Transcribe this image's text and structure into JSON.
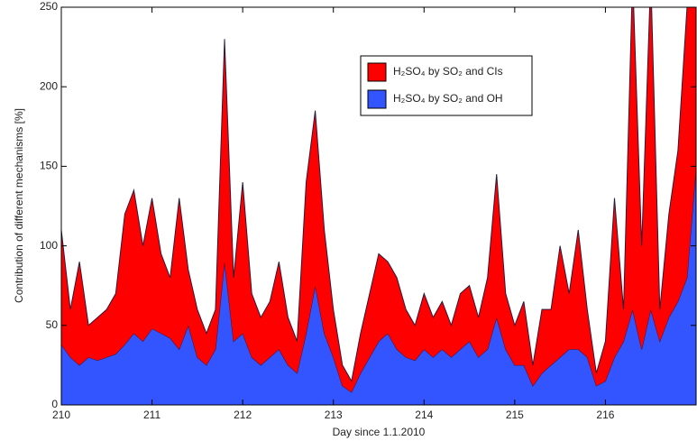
{
  "chart_data": {
    "type": "stacked_area",
    "xlabel": "Day since 1.1.2010",
    "ylabel": "Contribution of different mechanisms [%]",
    "x": [
      210,
      210.1,
      210.2,
      210.3,
      210.4,
      210.5,
      210.6,
      210.7,
      210.8,
      210.9,
      211,
      211.1,
      211.2,
      211.3,
      211.4,
      211.5,
      211.6,
      211.7,
      211.8,
      211.9,
      212,
      212.1,
      212.2,
      212.3,
      212.4,
      212.5,
      212.6,
      212.7,
      212.8,
      212.9,
      213,
      213.1,
      213.2,
      213.3,
      213.4,
      213.5,
      213.6,
      213.7,
      213.8,
      213.9,
      214,
      214.1,
      214.2,
      214.3,
      214.4,
      214.5,
      214.6,
      214.7,
      214.8,
      214.9,
      215,
      215.1,
      215.2,
      215.3,
      215.4,
      215.5,
      215.6,
      215.7,
      215.8,
      215.9,
      216,
      216.1,
      216.2,
      216.3,
      216.4,
      216.5,
      216.6,
      216.7,
      216.8,
      216.9,
      217
    ],
    "series": [
      {
        "name": "H₂SO₄ by SO₂ and CIs",
        "color": "#ff0000",
        "values": [
          72,
          30,
          65,
          20,
          27,
          30,
          38,
          82,
          90,
          60,
          82,
          50,
          38,
          95,
          35,
          30,
          20,
          25,
          140,
          40,
          95,
          40,
          30,
          35,
          55,
          30,
          20,
          95,
          110,
          65,
          30,
          13,
          7,
          25,
          40,
          55,
          45,
          45,
          30,
          22,
          35,
          25,
          30,
          20,
          35,
          35,
          25,
          45,
          90,
          35,
          25,
          40,
          13,
          40,
          35,
          70,
          35,
          75,
          30,
          8,
          25,
          100,
          20,
          210,
          65,
          210,
          20,
          65,
          95,
          170,
          110
        ]
      },
      {
        "name": "H₂SO₄ by SO₂ and OH",
        "color": "#3355ff",
        "values": [
          38,
          30,
          25,
          30,
          28,
          30,
          32,
          38,
          45,
          40,
          48,
          45,
          42,
          35,
          50,
          30,
          25,
          35,
          90,
          40,
          45,
          30,
          25,
          30,
          35,
          25,
          20,
          45,
          75,
          45,
          30,
          12,
          8,
          20,
          30,
          40,
          45,
          35,
          30,
          28,
          35,
          30,
          35,
          30,
          35,
          40,
          30,
          35,
          55,
          35,
          25,
          25,
          12,
          20,
          25,
          30,
          35,
          35,
          30,
          12,
          15,
          30,
          40,
          60,
          35,
          60,
          40,
          55,
          65,
          80,
          150
        ]
      }
    ],
    "xlim": [
      210,
      217
    ],
    "xticks": [
      210,
      211,
      212,
      213,
      214,
      215,
      216
    ],
    "ylim": [
      0,
      250
    ],
    "yticks": [
      0,
      50,
      100,
      150,
      200,
      250
    ],
    "legend": "upper center"
  }
}
